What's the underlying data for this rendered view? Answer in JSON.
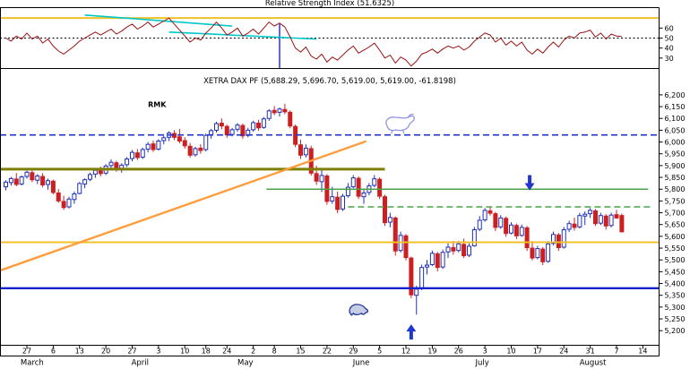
{
  "colors": {
    "background": "#ffffff",
    "axis_text": "#000000",
    "candle_up": "#2030b8",
    "candle_down": "#cc2020",
    "rsi_line": "#991111",
    "cyan_trendline": "#00c8c8",
    "orange_trendline": "#ff9d3c",
    "annotation_blue": "#2233cc",
    "bull_sketch": "#9095e0",
    "bear_sketch": "#1e3799"
  },
  "chart_data": [
    {
      "type": "line",
      "panel": "indicator",
      "title": "Relative Strength Index (51.6325)",
      "ylim": [
        20,
        80
      ],
      "y_ticks": [
        60,
        50,
        40,
        30
      ],
      "series": [
        {
          "name": "RSI",
          "values": [
            50,
            47,
            52,
            49,
            55,
            49,
            52,
            45,
            49,
            42,
            37,
            34,
            38,
            42,
            47,
            50,
            53,
            56,
            53,
            56,
            59,
            54,
            57,
            61,
            64,
            59,
            62,
            66,
            61,
            64,
            67,
            70,
            64,
            58,
            52,
            46,
            50,
            48,
            55,
            60,
            66,
            60,
            53,
            56,
            60,
            52,
            55,
            59,
            54,
            60,
            66,
            62,
            65,
            61,
            51,
            40,
            36,
            41,
            32,
            29,
            34,
            26,
            31,
            28,
            33,
            38,
            42,
            35,
            38,
            41,
            45,
            38,
            30,
            33,
            25,
            31,
            28,
            22,
            27,
            34,
            36,
            39,
            35,
            39,
            42,
            40,
            42,
            38,
            41,
            47,
            51,
            55,
            53,
            46,
            50,
            43,
            47,
            42,
            46,
            38,
            34,
            39,
            35,
            41,
            46,
            41,
            48,
            52,
            50,
            55,
            56,
            58,
            51,
            55,
            49,
            54,
            52,
            51.63
          ]
        }
      ],
      "levels": [
        {
          "value": 70,
          "color": "#f0c028",
          "style": "solid",
          "width": 2
        },
        {
          "value": 50,
          "color": "#000000",
          "style": "dotted",
          "width": 1
        }
      ],
      "trendlines": [
        {
          "x1di": 15,
          "v1": 73,
          "x2di": 43,
          "v2": 62,
          "color": "#00c8c8",
          "width": 1.6
        },
        {
          "x1di": 31,
          "v1": 56,
          "x2di": 59,
          "v2": 49,
          "color": "#00c8c8",
          "width": 1.6
        }
      ],
      "vlines": [
        {
          "di": 52,
          "v1": 64,
          "v2": 20,
          "color": "#2233ee",
          "width": 1.5
        }
      ]
    },
    {
      "type": "candlestick",
      "panel": "price",
      "title": "XETRA DAX PF (5,688.29, 5,696.70, 5,619.00, 5,619.00, -61.8198)",
      "ylim": [
        5140,
        6230
      ],
      "y_tick_min": 5200,
      "y_tick_max": 6200,
      "y_tick_step": 50,
      "ohlc": [
        [
          5810,
          5838,
          5795,
          5830
        ],
        [
          5828,
          5852,
          5815,
          5845
        ],
        [
          5843,
          5868,
          5812,
          5820
        ],
        [
          5822,
          5858,
          5816,
          5852
        ],
        [
          5854,
          5878,
          5845,
          5872
        ],
        [
          5870,
          5880,
          5830,
          5840
        ],
        [
          5838,
          5864,
          5822,
          5856
        ],
        [
          5854,
          5868,
          5808,
          5818
        ],
        [
          5820,
          5845,
          5798,
          5836
        ],
        [
          5834,
          5840,
          5778,
          5786
        ],
        [
          5784,
          5800,
          5742,
          5750
        ],
        [
          5748,
          5772,
          5712,
          5722
        ],
        [
          5725,
          5768,
          5718,
          5758
        ],
        [
          5756,
          5790,
          5738,
          5780
        ],
        [
          5782,
          5830,
          5778,
          5824
        ],
        [
          5822,
          5846,
          5804,
          5840
        ],
        [
          5842,
          5870,
          5834,
          5862
        ],
        [
          5864,
          5890,
          5848,
          5880
        ],
        [
          5878,
          5896,
          5854,
          5866
        ],
        [
          5868,
          5906,
          5860,
          5898
        ],
        [
          5900,
          5926,
          5886,
          5914
        ],
        [
          5912,
          5920,
          5874,
          5884
        ],
        [
          5886,
          5910,
          5870,
          5902
        ],
        [
          5904,
          5936,
          5894,
          5928
        ],
        [
          5930,
          5966,
          5918,
          5956
        ],
        [
          5954,
          5970,
          5924,
          5934
        ],
        [
          5936,
          5976,
          5928,
          5968
        ],
        [
          5970,
          6000,
          5956,
          5990
        ],
        [
          5992,
          6006,
          5958,
          5968
        ],
        [
          5970,
          6012,
          5964,
          6004
        ],
        [
          6006,
          6026,
          5990,
          6018
        ],
        [
          6020,
          6046,
          6004,
          6038
        ],
        [
          6036,
          6050,
          6008,
          6020
        ],
        [
          6022,
          6056,
          5994,
          6004
        ],
        [
          6006,
          6020,
          5972,
          5984
        ],
        [
          5982,
          5996,
          5934,
          5944
        ],
        [
          5946,
          5980,
          5938,
          5972
        ],
        [
          5974,
          5990,
          5950,
          5964
        ],
        [
          5968,
          6036,
          5960,
          6028
        ],
        [
          6030,
          6056,
          6014,
          6048
        ],
        [
          6050,
          6086,
          6040,
          6078
        ],
        [
          6080,
          6100,
          6054,
          6068
        ],
        [
          6066,
          6074,
          6018,
          6030
        ],
        [
          6032,
          6060,
          6024,
          6052
        ],
        [
          6054,
          6080,
          6044,
          6072
        ],
        [
          6070,
          6078,
          6014,
          6026
        ],
        [
          6028,
          6060,
          6020,
          6050
        ],
        [
          6052,
          6090,
          6044,
          6082
        ],
        [
          6080,
          6094,
          6048,
          6060
        ],
        [
          6062,
          6106,
          6056,
          6098
        ],
        [
          6100,
          6140,
          6090,
          6132
        ],
        [
          6134,
          6152,
          6114,
          6124
        ],
        [
          6126,
          6146,
          6108,
          6140
        ],
        [
          6138,
          6162,
          6118,
          6128
        ],
        [
          6126,
          6134,
          6058,
          6068
        ],
        [
          6066,
          6074,
          5978,
          5990
        ],
        [
          5988,
          6010,
          5928,
          5944
        ],
        [
          5946,
          5990,
          5934,
          5974
        ],
        [
          5972,
          5984,
          5858,
          5868
        ],
        [
          5866,
          5900,
          5818,
          5834
        ],
        [
          5832,
          5880,
          5788,
          5858
        ],
        [
          5856,
          5864,
          5734,
          5748
        ],
        [
          5750,
          5810,
          5738,
          5768
        ],
        [
          5766,
          5790,
          5698,
          5714
        ],
        [
          5716,
          5780,
          5708,
          5770
        ],
        [
          5772,
          5826,
          5764,
          5808
        ],
        [
          5810,
          5860,
          5804,
          5848
        ],
        [
          5846,
          5854,
          5758,
          5770
        ],
        [
          5768,
          5800,
          5738,
          5784
        ],
        [
          5786,
          5826,
          5774,
          5814
        ],
        [
          5816,
          5860,
          5808,
          5844
        ],
        [
          5842,
          5850,
          5758,
          5770
        ],
        [
          5768,
          5776,
          5644,
          5658
        ],
        [
          5660,
          5700,
          5638,
          5680
        ],
        [
          5678,
          5684,
          5518,
          5538
        ],
        [
          5540,
          5620,
          5532,
          5604
        ],
        [
          5602,
          5610,
          5498,
          5510
        ],
        [
          5508,
          5514,
          5338,
          5352
        ],
        [
          5350,
          5390,
          5268,
          5376
        ],
        [
          5378,
          5480,
          5372,
          5468
        ],
        [
          5470,
          5500,
          5438,
          5478
        ],
        [
          5480,
          5540,
          5474,
          5528
        ],
        [
          5526,
          5534,
          5452,
          5468
        ],
        [
          5470,
          5544,
          5462,
          5532
        ],
        [
          5534,
          5570,
          5508,
          5554
        ],
        [
          5552,
          5580,
          5522,
          5538
        ],
        [
          5540,
          5580,
          5532,
          5568
        ],
        [
          5566,
          5590,
          5508,
          5518
        ],
        [
          5520,
          5570,
          5512,
          5558
        ],
        [
          5560,
          5640,
          5556,
          5628
        ],
        [
          5630,
          5686,
          5622,
          5668
        ],
        [
          5670,
          5720,
          5662,
          5710
        ],
        [
          5708,
          5726,
          5688,
          5698
        ],
        [
          5696,
          5704,
          5622,
          5638
        ],
        [
          5640,
          5690,
          5632,
          5678
        ],
        [
          5676,
          5684,
          5598,
          5612
        ],
        [
          5614,
          5660,
          5608,
          5648
        ],
        [
          5646,
          5654,
          5588,
          5602
        ],
        [
          5604,
          5650,
          5598,
          5638
        ],
        [
          5636,
          5644,
          5538,
          5552
        ],
        [
          5550,
          5580,
          5498,
          5508
        ],
        [
          5510,
          5560,
          5502,
          5548
        ],
        [
          5546,
          5554,
          5478,
          5492
        ],
        [
          5494,
          5580,
          5488,
          5568
        ],
        [
          5570,
          5620,
          5562,
          5608
        ],
        [
          5606,
          5614,
          5538,
          5552
        ],
        [
          5554,
          5640,
          5548,
          5628
        ],
        [
          5630,
          5666,
          5618,
          5654
        ],
        [
          5652,
          5680,
          5624,
          5638
        ],
        [
          5640,
          5700,
          5634,
          5688
        ],
        [
          5686,
          5706,
          5648,
          5694
        ],
        [
          5696,
          5720,
          5678,
          5710
        ],
        [
          5708,
          5716,
          5644,
          5654
        ],
        [
          5656,
          5700,
          5648,
          5688
        ],
        [
          5686,
          5694,
          5628,
          5644
        ],
        [
          5646,
          5700,
          5638,
          5690
        ],
        [
          5692,
          5712,
          5674,
          5678
        ],
        [
          5688.29,
          5696.7,
          5619,
          5619
        ]
      ],
      "levels": [
        {
          "value": 6030,
          "color": "#2233cc",
          "style": "dashed",
          "width": 1.6,
          "x1di": -2,
          "x2di": 126
        },
        {
          "value": 5885,
          "color": "#7e7e00",
          "style": "solid",
          "width": 3,
          "x1di": -2,
          "x2di": 72
        },
        {
          "value": 5800,
          "color": "#4aa34a",
          "style": "solid",
          "width": 1.5,
          "x1di": 49.5,
          "x2di": 122
        },
        {
          "value": 5725,
          "color": "#4aa34a",
          "style": "dashed",
          "width": 1.5,
          "x1di": 65,
          "x2di": 123
        },
        {
          "value": 5575,
          "color": "#f0c028",
          "style": "solid",
          "width": 2,
          "x1di": -2,
          "x2di": 126
        },
        {
          "value": 5380,
          "color": "#1522cc",
          "style": "solid",
          "width": 2.4,
          "x1di": -2,
          "x2di": 126
        }
      ],
      "trendlines": [
        {
          "x1di": -1.1,
          "v1": 5455,
          "x2di": 68.3,
          "v2": 6002,
          "color": "#ff9d3c",
          "width": 2.4
        }
      ],
      "annotations": {
        "rmk_label": {
          "text": "RMK",
          "di": 27,
          "v": 6148
        },
        "down_arrow": {
          "di": 99.5,
          "v": 5795,
          "dir": "down"
        },
        "up_arrow": {
          "di": 77,
          "v": 5227,
          "dir": "up"
        },
        "bull_sketch": {
          "di": 71.7,
          "v": 6120
        },
        "bear_sketch": {
          "di": 64.8,
          "v": 5319
        }
      },
      "x_ticks": [
        {
          "label": "27",
          "di": 4
        },
        {
          "label": "6",
          "di": 9
        },
        {
          "label": "13",
          "di": 14
        },
        {
          "label": "20",
          "di": 19
        },
        {
          "label": "27",
          "di": 24
        },
        {
          "label": "3",
          "di": 29
        },
        {
          "label": "10",
          "di": 34
        },
        {
          "label": "18",
          "di": 38
        },
        {
          "label": "24",
          "di": 42
        },
        {
          "label": "2",
          "di": 47
        },
        {
          "label": "8",
          "di": 51
        },
        {
          "label": "15",
          "di": 56
        },
        {
          "label": "22",
          "di": 61
        },
        {
          "label": "29",
          "di": 66
        },
        {
          "label": "5",
          "di": 71
        },
        {
          "label": "12",
          "di": 76
        },
        {
          "label": "19",
          "di": 81
        },
        {
          "label": "26",
          "di": 86
        },
        {
          "label": "3",
          "di": 91
        },
        {
          "label": "10",
          "di": 96
        },
        {
          "label": "17",
          "di": 101
        },
        {
          "label": "24",
          "di": 106
        },
        {
          "label": "31",
          "di": 111
        },
        {
          "label": "7",
          "di": 116
        },
        {
          "label": "14",
          "di": 121
        }
      ],
      "months": [
        {
          "label": "March",
          "di": 5
        },
        {
          "label": "April",
          "di": 25.5
        },
        {
          "label": "May",
          "di": 45.5
        },
        {
          "label": "June",
          "di": 67.5
        },
        {
          "label": "July",
          "di": 90.5
        },
        {
          "label": "August",
          "di": 111.5
        }
      ]
    }
  ]
}
